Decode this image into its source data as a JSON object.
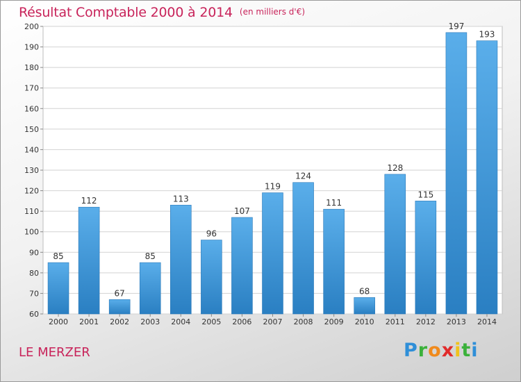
{
  "header": {
    "title": "Résultat Comptable 2000 à 2014",
    "unit_note": "(en milliers d'€)"
  },
  "footer": {
    "commune": "LE MERZER",
    "logo_letters": [
      "P",
      "r",
      "o",
      "x",
      "i",
      "t",
      "i"
    ]
  },
  "colors": {
    "accent_text": "#c8235a",
    "bar_top": "#5aaeea",
    "bar_bottom": "#2a7fc2",
    "grid": "#d2d2d2"
  },
  "chart_data": {
    "type": "bar",
    "categories": [
      "2000",
      "2001",
      "2002",
      "2003",
      "2004",
      "2005",
      "2006",
      "2007",
      "2008",
      "2009",
      "2010",
      "2011",
      "2012",
      "2013",
      "2014"
    ],
    "values": [
      85,
      112,
      67,
      85,
      113,
      96,
      107,
      119,
      124,
      111,
      68,
      128,
      115,
      197,
      193
    ],
    "data_labels": [
      "85",
      "112",
      "67",
      "85",
      "113",
      "96",
      "107",
      "119",
      "124",
      "111",
      "68",
      "128",
      "115",
      "197",
      "193"
    ],
    "y_ticks": [
      "60",
      "70",
      "80",
      "90",
      "100",
      "110",
      "120",
      "130",
      "140",
      "150",
      "160",
      "170",
      "180",
      "190",
      "200"
    ],
    "ylim": [
      60,
      200
    ],
    "grid": true,
    "legend": "none"
  }
}
